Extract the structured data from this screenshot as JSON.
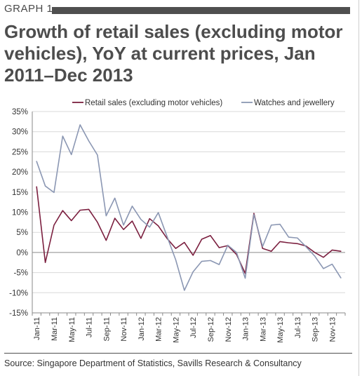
{
  "header": {
    "graph_label": "GRAPH 1",
    "title": "Growth of retail sales (excluding motor vehicles), YoY at current prices, Jan 2011–Dec 2013"
  },
  "footer": {
    "source": "Source: Singapore Department of Statistics, Savills Research & Consultancy"
  },
  "chart_data": {
    "type": "line",
    "title": "",
    "xlabel": "",
    "ylabel": "",
    "ylim": [
      -15,
      35
    ],
    "yticks": [
      -15,
      -10,
      -5,
      0,
      5,
      10,
      15,
      20,
      25,
      30,
      35
    ],
    "ytick_labels": [
      "-15%",
      "-10%",
      "-5%",
      "0%",
      "5%",
      "10%",
      "15%",
      "20%",
      "25%",
      "30%",
      "35%"
    ],
    "grid": "horizontal",
    "legend_position": "top",
    "categories": [
      "Jan-11",
      "Feb-11",
      "Mar-11",
      "Apr-11",
      "May-11",
      "Jun-11",
      "Jul-11",
      "Aug-11",
      "Sep-11",
      "Oct-11",
      "Nov-11",
      "Dec-11",
      "Jan-12",
      "Feb-12",
      "Mar-12",
      "Apr-12",
      "May-12",
      "Jun-12",
      "Jul-12",
      "Aug-12",
      "Sep-12",
      "Oct-12",
      "Nov-12",
      "Dec-12",
      "Jan-13",
      "Feb-13",
      "Mar-13",
      "Apr-13",
      "May-13",
      "Jun-13",
      "Jul-13",
      "Aug-13",
      "Sep-13",
      "Oct-13",
      "Nov-13",
      "Dec-13"
    ],
    "tick_labels": [
      "Jan-11",
      "Mar-11",
      "May-11",
      "Jul-11",
      "Sep-11",
      "Nov-11",
      "Jan-12",
      "Mar-12",
      "May-12",
      "Jul-12",
      "Sep-12",
      "Nov-12",
      "Jan-13",
      "Mar-13",
      "May-13",
      "Jul-13",
      "Sep-13",
      "Nov-13"
    ],
    "series": [
      {
        "name": "Retail sales (excluding motor vehicles)",
        "color": "#7b1f3f",
        "values": [
          16.3,
          -2.5,
          6.8,
          10.4,
          7.9,
          10.5,
          10.7,
          7.5,
          3.0,
          8.5,
          5.7,
          7.8,
          3.5,
          8.4,
          6.6,
          3.5,
          1.0,
          2.5,
          -0.7,
          3.3,
          4.2,
          1.2,
          1.7,
          -0.5,
          -5.2,
          9.7,
          1.0,
          0.3,
          2.7,
          2.4,
          2.2,
          1.6,
          0.0,
          -1.2,
          0.6,
          0.3
        ]
      },
      {
        "name": "Watches and jewellery",
        "color": "#8b97b3",
        "values": [
          22.6,
          16.5,
          14.9,
          28.9,
          24.3,
          31.7,
          27.7,
          24.2,
          9.1,
          13.5,
          6.8,
          11.5,
          8.2,
          6.3,
          9.9,
          4.0,
          -1.8,
          -9.4,
          -4.8,
          -2.2,
          -2.0,
          -3.0,
          1.8,
          0.0,
          -6.4,
          9.4,
          1.5,
          6.8,
          7.0,
          3.8,
          3.6,
          1.4,
          -0.9,
          -4.0,
          -2.9,
          -6.3
        ]
      }
    ]
  }
}
